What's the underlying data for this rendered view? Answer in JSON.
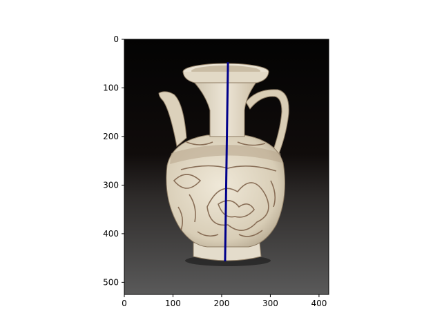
{
  "chart_data": {
    "type": "image-plot",
    "title": "",
    "xlabel": "",
    "ylabel": "",
    "xlim": [
      0,
      420
    ],
    "ylim": [
      525,
      0
    ],
    "x_axis": {
      "ticks": [
        0,
        100,
        200,
        300,
        400
      ],
      "tick_labels": [
        "0",
        "100",
        "200",
        "300",
        "400"
      ]
    },
    "y_axis": {
      "ticks": [
        0,
        100,
        200,
        300,
        400,
        500
      ],
      "tick_labels": [
        "0",
        "100",
        "200",
        "300",
        "400",
        "500"
      ],
      "inverted": true
    },
    "grid": false,
    "legend": "none",
    "image_subject": "white glazed ceramic ewer with carved brown floral decoration, photographed against a dark background",
    "series": [
      {
        "type": "line",
        "color": "#00008b",
        "x": [
          213,
          207
        ],
        "y": [
          47,
          457
        ]
      }
    ]
  },
  "colors": {
    "line": "#00008b",
    "bg_top": "#050505",
    "bg_bottom": "#555555",
    "glaze": "#e8e0cf",
    "carving": "#7a5d45"
  }
}
